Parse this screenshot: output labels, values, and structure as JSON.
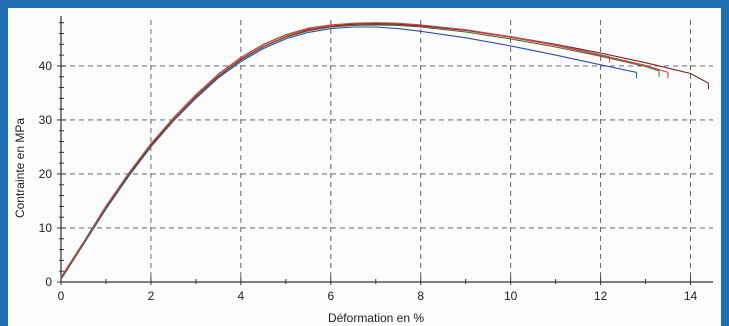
{
  "chart_data": {
    "type": "line",
    "title": "",
    "xlabel": "Déformation en %",
    "ylabel": "Contrainte en MPa",
    "xlim": [
      0,
      14.5
    ],
    "ylim": [
      0,
      48.5
    ],
    "xticks": [
      0,
      2,
      4,
      6,
      8,
      10,
      12,
      14
    ],
    "yticks": [
      0,
      10,
      20,
      30,
      40
    ],
    "grid": true,
    "series": [
      {
        "color": "#2e4fa3",
        "x": [
          0,
          0.5,
          1,
          1.5,
          2,
          2.5,
          3,
          3.5,
          4,
          4.5,
          5,
          5.5,
          6,
          6.5,
          7,
          7.5,
          8,
          9,
          10,
          11,
          12,
          12.8
        ],
        "y": [
          0.5,
          7,
          13.5,
          19.5,
          25,
          29.8,
          34,
          37.8,
          40.8,
          43.2,
          45,
          46.2,
          46.9,
          47.2,
          47.2,
          46.9,
          46.4,
          45.2,
          43.7,
          42,
          40.2,
          38.8
        ]
      },
      {
        "color": "#d23a2a",
        "x": [
          0,
          0.5,
          1,
          1.5,
          2,
          2.5,
          3,
          3.5,
          4,
          4.5,
          5,
          5.5,
          6,
          6.5,
          7,
          7.5,
          8,
          9,
          10,
          11,
          12,
          13,
          13.5
        ],
        "y": [
          0.8,
          7.3,
          14,
          20,
          25.5,
          30.3,
          34.6,
          38.4,
          41.5,
          43.9,
          45.7,
          46.8,
          47.5,
          47.8,
          47.9,
          47.8,
          47.5,
          46.6,
          45.3,
          43.8,
          42,
          40.1,
          38.8
        ]
      },
      {
        "color": "#7a1e1e",
        "x": [
          0,
          0.5,
          1,
          1.5,
          2,
          2.5,
          3,
          3.5,
          4,
          4.5,
          5,
          5.5,
          6,
          6.5,
          7,
          7.5,
          8,
          9,
          10,
          11,
          12,
          13,
          14,
          14.4
        ],
        "y": [
          0.6,
          7.1,
          13.8,
          19.8,
          25.3,
          30,
          34.3,
          38.1,
          41.2,
          43.6,
          45.4,
          46.6,
          47.3,
          47.7,
          47.8,
          47.7,
          47.4,
          46.6,
          45.4,
          44,
          42.4,
          40.6,
          38.6,
          36.8
        ]
      },
      {
        "color": "#4a6a4a",
        "x": [
          0,
          0.5,
          1,
          1.5,
          2,
          2.5,
          3,
          3.5,
          4,
          4.5,
          5,
          5.5,
          6,
          6.5,
          7,
          7.5,
          8,
          9,
          10,
          11,
          12,
          13,
          13.3
        ],
        "y": [
          0.7,
          7.2,
          13.7,
          19.7,
          25.1,
          29.9,
          34.2,
          38,
          41.1,
          43.5,
          45.3,
          46.5,
          47.2,
          47.5,
          47.6,
          47.5,
          47.2,
          46.3,
          45,
          43.5,
          41.8,
          39.9,
          39.1
        ]
      },
      {
        "color": "#c0504d",
        "x": [
          0,
          0.5,
          1,
          1.5,
          2,
          2.5,
          3,
          3.5,
          4,
          4.5,
          5,
          5.5,
          6,
          6.5,
          7,
          7.5,
          8,
          9,
          10,
          11,
          12,
          12.2
        ],
        "y": [
          0.9,
          7.4,
          14.1,
          20.1,
          25.6,
          30.4,
          34.7,
          38.5,
          41.6,
          44,
          45.8,
          47,
          47.6,
          47.9,
          48,
          47.9,
          47.6,
          46.7,
          45.4,
          43.9,
          42.1,
          41.7
        ]
      }
    ]
  }
}
